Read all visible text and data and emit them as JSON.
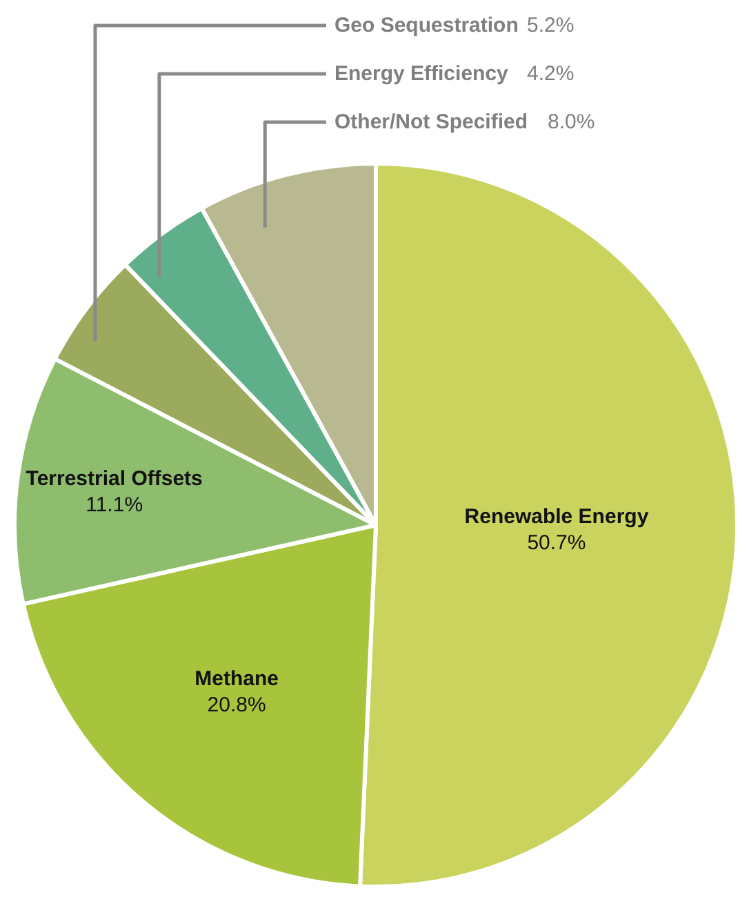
{
  "chart_data": {
    "type": "pie",
    "categories": [
      "Renewable Energy",
      "Methane",
      "Terrestrial Offsets",
      "Geo Sequestration",
      "Energy Efficiency",
      "Other/Not Specified"
    ],
    "values": [
      50.7,
      20.8,
      11.1,
      5.2,
      4.2,
      8.0
    ],
    "colors": [
      "#c9d35e",
      "#a8c43c",
      "#8fbd6e",
      "#9caa5e",
      "#5fb08a",
      "#b9b991"
    ],
    "value_labels": [
      "50.7%",
      "20.8%",
      "11.1%",
      "5.2%",
      "4.2%",
      "8.0%"
    ]
  }
}
